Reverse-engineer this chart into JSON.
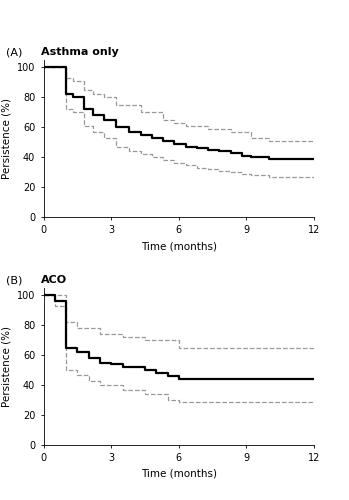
{
  "panel_A_title": "Asthma only",
  "panel_B_title": "ACO",
  "panel_label_A": "(A)",
  "panel_label_B": "(B)",
  "xlabel": "Time (months)",
  "ylabel": "Persistence (%)",
  "xticks": [
    0,
    3,
    6,
    9,
    12
  ],
  "yticks": [
    0,
    20,
    40,
    60,
    80,
    100
  ],
  "ylim": [
    0,
    105
  ],
  "xlim": [
    0,
    12
  ],
  "A_km": {
    "x": [
      0,
      1,
      1,
      1.3,
      1.3,
      1.8,
      1.8,
      2.2,
      2.2,
      2.7,
      2.7,
      3.2,
      3.2,
      3.8,
      3.8,
      4.3,
      4.3,
      4.8,
      4.8,
      5.3,
      5.3,
      5.8,
      5.8,
      6.3,
      6.3,
      6.8,
      6.8,
      7.3,
      7.3,
      7.8,
      7.8,
      8.3,
      8.3,
      8.8,
      8.8,
      9.2,
      9.2,
      10.0,
      10.0,
      12.0
    ],
    "y": [
      100,
      100,
      82,
      82,
      80,
      80,
      72,
      72,
      68,
      68,
      65,
      65,
      60,
      60,
      57,
      57,
      55,
      55,
      53,
      53,
      51,
      51,
      49,
      49,
      47,
      47,
      46,
      46,
      45,
      45,
      44,
      44,
      43,
      43,
      41,
      41,
      40,
      40,
      39,
      39
    ]
  },
  "A_ci_upper": {
    "x": [
      0,
      1,
      1,
      1.3,
      1.3,
      1.8,
      1.8,
      2.2,
      2.2,
      2.7,
      2.7,
      3.2,
      3.2,
      4.3,
      4.3,
      5.3,
      5.3,
      5.8,
      5.8,
      6.3,
      6.3,
      7.3,
      7.3,
      8.3,
      8.3,
      9.2,
      9.2,
      10.0,
      10.0,
      12.0
    ],
    "y": [
      100,
      100,
      93,
      93,
      91,
      91,
      85,
      85,
      82,
      82,
      80,
      80,
      75,
      75,
      70,
      70,
      65,
      65,
      63,
      63,
      61,
      61,
      59,
      59,
      57,
      57,
      53,
      53,
      51,
      51
    ]
  },
  "A_ci_lower": {
    "x": [
      0,
      1,
      1,
      1.3,
      1.3,
      1.8,
      1.8,
      2.2,
      2.2,
      2.7,
      2.7,
      3.2,
      3.2,
      3.8,
      3.8,
      4.3,
      4.3,
      4.8,
      4.8,
      5.3,
      5.3,
      5.8,
      5.8,
      6.3,
      6.3,
      6.8,
      6.8,
      7.3,
      7.3,
      7.8,
      7.8,
      8.3,
      8.3,
      8.8,
      8.8,
      9.2,
      9.2,
      10.0,
      10.0,
      12.0
    ],
    "y": [
      100,
      100,
      72,
      72,
      70,
      70,
      61,
      61,
      57,
      57,
      53,
      53,
      47,
      47,
      44,
      44,
      42,
      42,
      40,
      40,
      38,
      38,
      36,
      36,
      35,
      35,
      33,
      33,
      32,
      32,
      31,
      31,
      30,
      30,
      29,
      29,
      28,
      28,
      27,
      27
    ]
  },
  "B_km": {
    "x": [
      0,
      0.5,
      0.5,
      1.0,
      1.0,
      1.5,
      1.5,
      2.0,
      2.0,
      2.5,
      2.5,
      3.0,
      3.0,
      3.5,
      3.5,
      4.5,
      4.5,
      5.0,
      5.0,
      5.5,
      5.5,
      6.0,
      6.0,
      12.0
    ],
    "y": [
      100,
      100,
      96,
      96,
      65,
      65,
      62,
      62,
      58,
      58,
      55,
      55,
      54,
      54,
      52,
      52,
      50,
      50,
      48,
      48,
      46,
      46,
      44,
      44
    ]
  },
  "B_ci_upper": {
    "x": [
      0,
      0.5,
      0.5,
      1.0,
      1.0,
      1.5,
      1.5,
      2.5,
      2.5,
      3.5,
      3.5,
      4.5,
      4.5,
      6.0,
      6.0,
      12.0
    ],
    "y": [
      100,
      100,
      100,
      100,
      82,
      82,
      78,
      78,
      74,
      74,
      72,
      72,
      70,
      70,
      65,
      65
    ]
  },
  "B_ci_lower": {
    "x": [
      0,
      0.5,
      0.5,
      1.0,
      1.0,
      1.5,
      1.5,
      2.0,
      2.0,
      2.5,
      2.5,
      3.5,
      3.5,
      4.5,
      4.5,
      5.5,
      5.5,
      6.0,
      6.0,
      12.0
    ],
    "y": [
      100,
      100,
      93,
      93,
      50,
      50,
      47,
      47,
      43,
      43,
      40,
      40,
      37,
      37,
      34,
      34,
      30,
      30,
      29,
      29
    ]
  },
  "line_color": "#000000",
  "ci_color": "#999999",
  "line_width": 1.6,
  "ci_linewidth": 0.9,
  "ci_linestyle": "--",
  "background_color": "#ffffff",
  "fontsize_label": 7.5,
  "fontsize_tick": 7,
  "fontsize_panel_label": 8,
  "fontsize_title": 8
}
